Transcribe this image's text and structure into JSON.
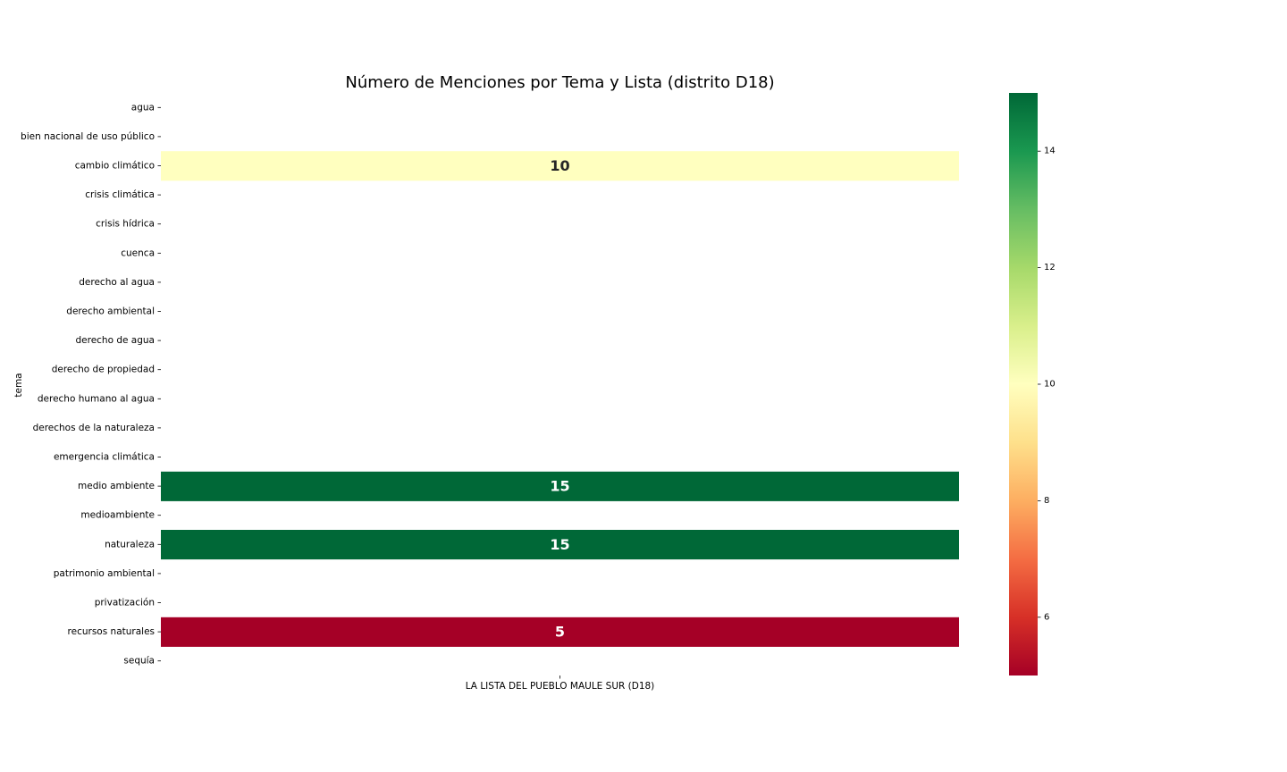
{
  "chart_data": {
    "type": "heatmap",
    "title": "Número de Menciones por Tema y Lista (distrito D18)",
    "xlabel": "",
    "ylabel": "tema",
    "x_categories": [
      "LA LISTA DEL PUEBLO MAULE SUR (D18)"
    ],
    "y_categories": [
      "agua",
      "bien nacional de uso público",
      "cambio climático",
      "crisis climática",
      "crisis hídrica",
      "cuenca",
      "derecho al agua",
      "derecho ambiental",
      "derecho de agua",
      "derecho de propiedad",
      "derecho humano al agua",
      "derechos de la naturaleza",
      "emergencia climática",
      "medio ambiente",
      "medioambiente",
      "naturaleza",
      "patrimonio ambiental",
      "privatización",
      "recursos naturales",
      "sequía"
    ],
    "values": [
      [
        null
      ],
      [
        null
      ],
      [
        10
      ],
      [
        null
      ],
      [
        null
      ],
      [
        null
      ],
      [
        null
      ],
      [
        null
      ],
      [
        null
      ],
      [
        null
      ],
      [
        null
      ],
      [
        null
      ],
      [
        null
      ],
      [
        15
      ],
      [
        null
      ],
      [
        15
      ],
      [
        null
      ],
      [
        null
      ],
      [
        5
      ],
      [
        null
      ]
    ],
    "colormap": "RdYlGn",
    "colorbar": {
      "vmin": 5,
      "vmax": 15,
      "ticks": [
        6,
        8,
        10,
        12,
        14
      ]
    },
    "annotated": true
  }
}
